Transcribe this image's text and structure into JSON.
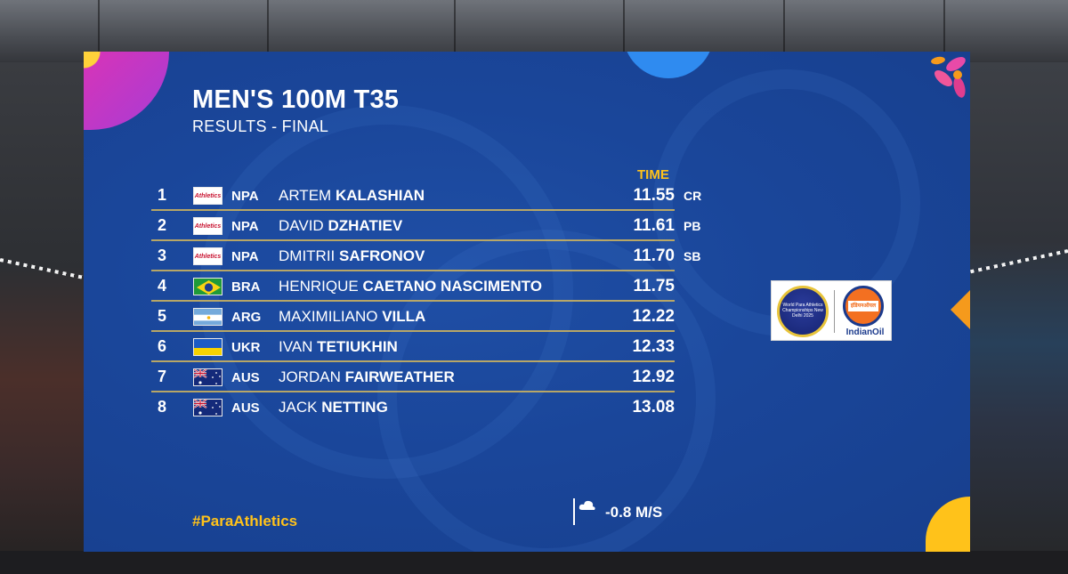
{
  "event": {
    "title": "MEN'S 100M T35",
    "subtitle": "RESULTS - FINAL",
    "time_header": "TIME"
  },
  "results": [
    {
      "rank": "1",
      "country": "NPA",
      "flag": "npa",
      "first": "ARTEM",
      "last": "KALASHIAN",
      "time": "11.55",
      "record": "CR"
    },
    {
      "rank": "2",
      "country": "NPA",
      "flag": "npa",
      "first": "DAVID",
      "last": "DZHATIEV",
      "time": "11.61",
      "record": "PB"
    },
    {
      "rank": "3",
      "country": "NPA",
      "flag": "npa",
      "first": "DMITRII",
      "last": "SAFRONOV",
      "time": "11.70",
      "record": "SB"
    },
    {
      "rank": "4",
      "country": "BRA",
      "flag": "brazil",
      "first": "HENRIQUE",
      "last": "CAETANO NASCIMENTO",
      "time": "11.75",
      "record": ""
    },
    {
      "rank": "5",
      "country": "ARG",
      "flag": "argentina",
      "first": "MAXIMILIANO",
      "last": "VILLA",
      "time": "12.22",
      "record": ""
    },
    {
      "rank": "6",
      "country": "UKR",
      "flag": "ukraine",
      "first": "IVAN",
      "last": "TETIUKHIN",
      "time": "12.33",
      "record": ""
    },
    {
      "rank": "7",
      "country": "AUS",
      "flag": "australia",
      "first": "JORDAN",
      "last": "FAIRWEATHER",
      "time": "12.92",
      "record": ""
    },
    {
      "rank": "8",
      "country": "AUS",
      "flag": "australia",
      "first": "JACK",
      "last": "NETTING",
      "time": "13.08",
      "record": ""
    }
  ],
  "npa_flag_label": "Athletics",
  "footer": {
    "hashtag": "#ParaAthletics",
    "wind": "-0.8 M/S",
    "wind_icon": "wind-cloud-icon"
  },
  "sponsor": {
    "championship_logo_text": "World Para Athletics Championships New Delhi 2025",
    "partner_name": "IndianOil",
    "partner_script": "इंडियनऑयल"
  },
  "colors": {
    "board_blue": "#1a469a",
    "accent_gold": "#ffc21a",
    "divider": "#c9b061",
    "pink": "#d834b7",
    "orange": "#f59a1c"
  }
}
